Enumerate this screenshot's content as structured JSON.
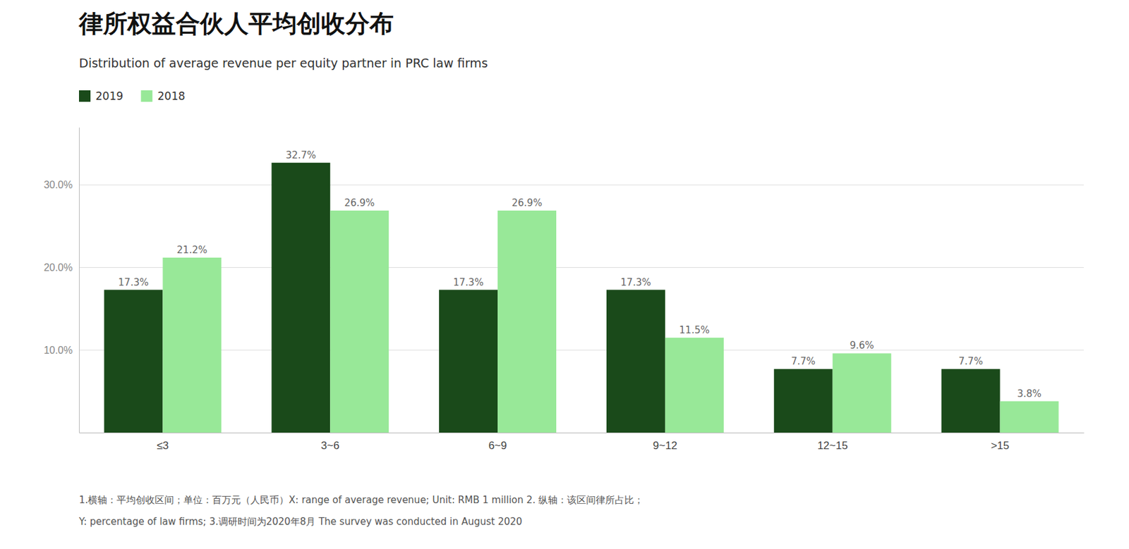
{
  "chart_data": {
    "type": "bar",
    "title": "律所权益合伙人平均创收分布",
    "subtitle": "Distribution of average revenue per equity partner in PRC law firms",
    "categories": [
      "≤3",
      "3~6",
      "6~9",
      "9~12",
      "12~15",
      ">15"
    ],
    "series": [
      {
        "name": "2019",
        "color": "#1a4a1a",
        "values": [
          17.3,
          32.7,
          17.3,
          17.3,
          7.7,
          7.7
        ],
        "value_labels": [
          "17.3%",
          "32.7%",
          "17.3%",
          "17.3%",
          "7.7%",
          "7.7%"
        ]
      },
      {
        "name": "2018",
        "color": "#98e898",
        "values": [
          21.2,
          26.9,
          26.9,
          11.5,
          9.6,
          3.8
        ],
        "value_labels": [
          "21.2%",
          "26.9%",
          "26.9%",
          "11.5%",
          "9.6%",
          "3.8%"
        ]
      }
    ],
    "ylim": [
      0,
      37
    ],
    "yticks": [
      {
        "value": 10.0,
        "label": "10.0%"
      },
      {
        "value": 20.0,
        "label": "20.0%"
      },
      {
        "value": 30.0,
        "label": "30.0%"
      }
    ],
    "grid": true,
    "legend": "upper left",
    "data_labels": true,
    "annotations": [
      "1.横轴：平均创收区间；单位：百万元（人民币）X: range of average revenue; Unit: RMB 1 million 2. 纵轴：该区间律所占比；",
      "Y: percentage of law firms; 3.调研时间为2020年8月 The survey was conducted in August 2020"
    ]
  }
}
